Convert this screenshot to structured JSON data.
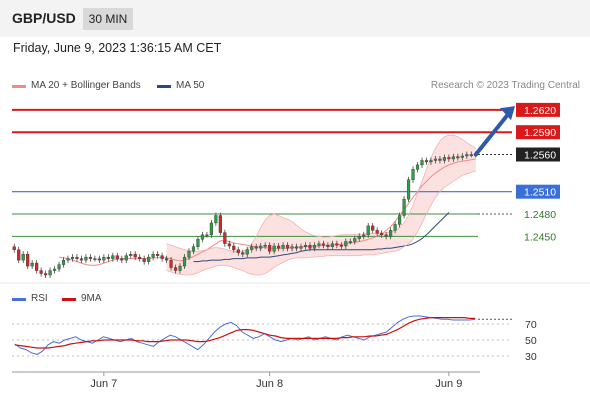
{
  "header": {
    "pair": "GBP/USD",
    "timeframe": "30 MIN",
    "timestamp": "Friday, June 9, 2023 1:36:15 AM CET"
  },
  "legend": {
    "ma20_label": "MA 20 + Bollinger Bands",
    "ma50_label": "MA 50",
    "credit": "Research © 2023 Trading Central",
    "ma20_color": "#f08a8a",
    "ma50_color": "#2b4a7a"
  },
  "rsi_legend": {
    "rsi_label": "RSI",
    "ma_label": "9MA",
    "rsi_color": "#4a6fd8",
    "ma_color": "#cc1111"
  },
  "levels": [
    {
      "value": 1.262,
      "text": "1.2620",
      "kind": "resistance",
      "box": "#d91a1a",
      "line": "#d91a1a",
      "textColor": "#ffffff"
    },
    {
      "value": 1.259,
      "text": "1.2590",
      "kind": "resistance",
      "box": "#d91a1a",
      "line": "#d91a1a",
      "textColor": "#ffffff"
    },
    {
      "value": 1.256,
      "text": "1.2560",
      "kind": "last",
      "box": "#222222",
      "line": "#333333",
      "textColor": "#ffffff"
    },
    {
      "value": 1.251,
      "text": "1.2510",
      "kind": "pivot",
      "box": "#3a6fd8",
      "line": "#3a6fd8",
      "textColor": "#ffffff"
    },
    {
      "value": 1.248,
      "text": "1.2480",
      "kind": "support",
      "box": "none",
      "line": "#3f8f3f",
      "textColor": "#2a7a2a"
    },
    {
      "value": 1.245,
      "text": "1.2450",
      "kind": "support",
      "box": "none",
      "line": "#3f8f3f",
      "textColor": "#2a7a2a"
    }
  ],
  "rsi_levels": [
    "70",
    "50",
    "30"
  ],
  "x_axis": {
    "ticks": [
      "Jun 7",
      "Jun 8",
      "Jun 9"
    ]
  },
  "chart_data": {
    "type": "candlestick",
    "title": "GBP/USD",
    "ylim": [
      1.2398,
      1.264
    ],
    "x": {
      "count": 104,
      "ticks": [
        {
          "label": "Jun 7",
          "index": 20
        },
        {
          "label": "Jun 8",
          "index": 57
        },
        {
          "label": "Jun 9",
          "index": 97
        }
      ]
    },
    "close": [
      1.2432,
      1.2418,
      1.2426,
      1.241,
      1.2414,
      1.2404,
      1.24,
      1.2398,
      1.2404,
      1.2406,
      1.2412,
      1.2418,
      1.242,
      1.2422,
      1.242,
      1.2418,
      1.2422,
      1.242,
      1.242,
      1.2418,
      1.2422,
      1.242,
      1.2424,
      1.242,
      1.2418,
      1.2424,
      1.2426,
      1.2422,
      1.242,
      1.2416,
      1.2422,
      1.2426,
      1.2424,
      1.242,
      1.2418,
      1.2408,
      1.2404,
      1.241,
      1.2422,
      1.243,
      1.2436,
      1.2446,
      1.2452,
      1.2452,
      1.2468,
      1.2478,
      1.2455,
      1.244,
      1.2437,
      1.2432,
      1.2428,
      1.2426,
      1.2432,
      1.2436,
      1.2434,
      1.2437,
      1.2438,
      1.243,
      1.2437,
      1.2434,
      1.2438,
      1.2434,
      1.2436,
      1.2434,
      1.2436,
      1.2438,
      1.2434,
      1.2438,
      1.244,
      1.2438,
      1.2436,
      1.244,
      1.2438,
      1.2437,
      1.2443,
      1.2443,
      1.2447,
      1.245,
      1.2452,
      1.2464,
      1.2458,
      1.2454,
      1.2452,
      1.245,
      1.2458,
      1.2466,
      1.2478,
      1.25,
      1.2526,
      1.254,
      1.2546,
      1.2552,
      1.255,
      1.2552,
      1.2554,
      1.2552,
      1.2556,
      1.2554,
      1.2557,
      1.2556,
      1.2558,
      1.256,
      1.256,
      1.256
    ],
    "ma20": [
      1.2422,
      1.2421,
      1.242,
      1.2418,
      1.2416,
      1.2414,
      1.2412,
      1.2411,
      1.2411,
      1.2412,
      1.2414,
      1.2416,
      1.2418,
      1.2419,
      1.242,
      1.242,
      1.242,
      1.242,
      1.242,
      1.242,
      1.242,
      1.2421,
      1.2421,
      1.2422,
      1.2421,
      1.242,
      1.2418,
      1.2417,
      1.2418,
      1.242,
      1.2423,
      1.2426,
      1.2429,
      1.2432,
      1.2436,
      1.244,
      1.2444,
      1.2444,
      1.2443,
      1.2441,
      1.244,
      1.2439,
      1.2438,
      1.2437,
      1.2436,
      1.2435,
      1.2435,
      1.2434,
      1.2434,
      1.2434,
      1.2434,
      1.2434,
      1.2435,
      1.2435,
      1.2436,
      1.2436,
      1.2437,
      1.2437,
      1.2437,
      1.2438,
      1.2438,
      1.2438,
      1.2439,
      1.2439,
      1.244,
      1.2441,
      1.2442,
      1.2443,
      1.2444,
      1.2446,
      1.2448,
      1.245,
      1.2453,
      1.2458,
      1.2463,
      1.247,
      1.2478,
      1.2486,
      1.2494,
      1.2502,
      1.251,
      1.2518,
      1.2524,
      1.253,
      1.2535,
      1.2539,
      1.2543,
      1.2546,
      1.2548,
      1.255,
      1.2551,
      1.2552,
      1.2553,
      1.2554
    ],
    "ma20_start_index": 10,
    "bb_upper": [
      1.244,
      1.2438,
      1.2436,
      1.2434,
      1.2432,
      1.2431,
      1.243,
      1.243,
      1.2431,
      1.2432,
      1.2434,
      1.2435,
      1.2434,
      1.2433,
      1.2431,
      1.243,
      1.2429,
      1.243,
      1.2433,
      1.244,
      1.245,
      1.2462,
      1.2472,
      1.2478,
      1.248,
      1.2478,
      1.2475,
      1.2473,
      1.247,
      1.2465,
      1.246,
      1.2456,
      1.2453,
      1.2451,
      1.245,
      1.2449,
      1.2449,
      1.245,
      1.2451,
      1.2452,
      1.2452,
      1.2452,
      1.2453,
      1.2453,
      1.2453,
      1.2454,
      1.2454,
      1.2454,
      1.2455,
      1.2455,
      1.2456,
      1.2458,
      1.2462,
      1.2468,
      1.2478,
      1.2492,
      1.2508,
      1.2524,
      1.254,
      1.2556,
      1.2568,
      1.2578,
      1.2584,
      1.2586,
      1.2586,
      1.2584,
      1.258,
      1.2576,
      1.2572,
      1.2568
    ],
    "bb_lower": [
      1.2404,
      1.2402,
      1.24,
      1.2399,
      1.2398,
      1.2398,
      1.2399,
      1.2401,
      1.2404,
      1.2406,
      1.2408,
      1.241,
      1.2411,
      1.2411,
      1.241,
      1.2408,
      1.2406,
      1.2404,
      1.2401,
      1.2399,
      1.2398,
      1.2398,
      1.24,
      1.2404,
      1.2408,
      1.2412,
      1.2415,
      1.2418,
      1.242,
      1.2421,
      1.2421,
      1.2421,
      1.2422,
      1.2422,
      1.2423,
      1.2423,
      1.2424,
      1.2424,
      1.2424,
      1.2424,
      1.2424,
      1.2424,
      1.2424,
      1.2424,
      1.2425,
      1.2425,
      1.2425,
      1.2426,
      1.2427,
      1.2428,
      1.2429,
      1.243,
      1.2432,
      1.2436,
      1.244,
      1.2446,
      1.2456,
      1.2468,
      1.248,
      1.2492,
      1.2502,
      1.251,
      1.2516,
      1.252,
      1.2524,
      1.2528,
      1.2532,
      1.2534,
      1.2536,
      1.2538
    ],
    "bb_start_index": 34,
    "ma50": [
      1.2416,
      1.2416,
      1.2417,
      1.2417,
      1.2418,
      1.2418,
      1.2418,
      1.2419,
      1.2419,
      1.242,
      1.242,
      1.242,
      1.2421,
      1.2421,
      1.2421,
      1.2422,
      1.2422,
      1.2422,
      1.2423,
      1.2424,
      1.2425,
      1.2426,
      1.2427,
      1.2428,
      1.243,
      1.2431,
      1.2432,
      1.2432,
      1.2432,
      1.2432,
      1.2432,
      1.2432,
      1.2432,
      1.2432,
      1.2432,
      1.2432,
      1.2432,
      1.2432,
      1.2432,
      1.2432,
      1.2432,
      1.2433,
      1.2433,
      1.2434,
      1.2434,
      1.2435,
      1.2436,
      1.2437,
      1.2438,
      1.244,
      1.2443,
      1.2447,
      1.2452,
      1.2458,
      1.2464,
      1.247,
      1.2476,
      1.2482
    ],
    "ma50_start_index": 40,
    "rsi": [
      45,
      40,
      38,
      34,
      32,
      36,
      44,
      48,
      46,
      50,
      52,
      54,
      50,
      48,
      46,
      50,
      54,
      52,
      50,
      48,
      50,
      52,
      48,
      46,
      44,
      42,
      48,
      52,
      56,
      54,
      50,
      46,
      42,
      38,
      44,
      52,
      60,
      66,
      70,
      72,
      68,
      60,
      56,
      52,
      54,
      58,
      54,
      50,
      48,
      50,
      52,
      50,
      52,
      54,
      50,
      52,
      54,
      52,
      50,
      54,
      56,
      54,
      52,
      50,
      54,
      56,
      58,
      60,
      66,
      72,
      76,
      79,
      80,
      80,
      79,
      78,
      77,
      76,
      76,
      75,
      75,
      75,
      75,
      76
    ],
    "rsi_ma": [
      44,
      43,
      42,
      41,
      40,
      40,
      40,
      41,
      42,
      43,
      45,
      46,
      47,
      48,
      49,
      49,
      50,
      50,
      50,
      50,
      50,
      50,
      49,
      49,
      48,
      48,
      48,
      49,
      50,
      50,
      50,
      50,
      49,
      48,
      48,
      49,
      51,
      53,
      56,
      59,
      62,
      63,
      63,
      62,
      60,
      58,
      56,
      55,
      53,
      52,
      52,
      52,
      52,
      52,
      52,
      52,
      52,
      52,
      52,
      53,
      53,
      54,
      54,
      54,
      55,
      55,
      56,
      57,
      60,
      63,
      67,
      71,
      74,
      76,
      77,
      78,
      78,
      78,
      78,
      78,
      78,
      78,
      77,
      77
    ],
    "rsi_ylim": [
      15,
      90
    ]
  }
}
